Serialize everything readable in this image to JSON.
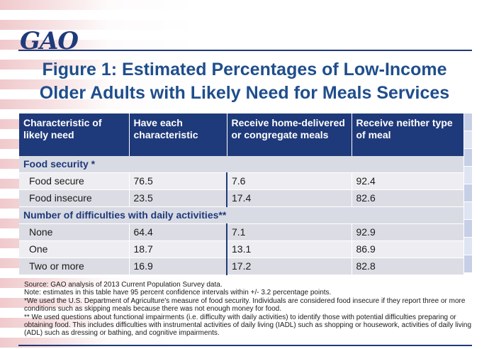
{
  "logo": "GAO",
  "title_lines": [
    "Figure 1: Estimated Percentages of Low-Income",
    "Older Adults with Likely Need for Meals Services"
  ],
  "table": {
    "headers": [
      "Characteristic of likely need",
      "Have each characteristic",
      "Receive home-delivered or congregate meals",
      "Receive neither type of meal"
    ],
    "sections": [
      {
        "label": "Food security *",
        "rows": [
          {
            "label": "Food secure",
            "values": [
              "76.5",
              "7.6",
              "92.4"
            ]
          },
          {
            "label": "Food insecure",
            "values": [
              "23.5",
              "17.4",
              "82.6"
            ]
          }
        ]
      },
      {
        "label": "Number of difficulties with daily activities**",
        "rows": [
          {
            "label": "None",
            "values": [
              "64.4",
              "7.1",
              "92.9"
            ]
          },
          {
            "label": "One",
            "values": [
              "18.7",
              "13.1",
              "86.9"
            ]
          },
          {
            "label": "Two or more",
            "values": [
              "16.9",
              "17.2",
              "82.8"
            ]
          }
        ]
      }
    ]
  },
  "notes": [
    "Source: GAO analysis of 2013 Current Population Survey data.",
    "Note: estimates in this table have 95 percent confidence intervals within +/- 3.2 percentage points.",
    "*We used the U.S. Department of Agriculture's measure of food security. Individuals are considered food insecure if they report three or more conditions such as skipping meals because there was not enough money for food.",
    "** We used questions about functional impairments (i.e. difficulty with daily activities) to identify those with potential difficulties preparing or obtaining food. This includes difficulties with instrumental activities of daily living (IADL) such as shopping or housework, activities of daily living (ADL) such as dressing or bathing, and cognitive impairments."
  ],
  "colors": {
    "header_bg": "#1f3a7a",
    "title": "#1f4e8c",
    "row_light": "#eeeef2",
    "row_dark": "#dcdde4"
  }
}
